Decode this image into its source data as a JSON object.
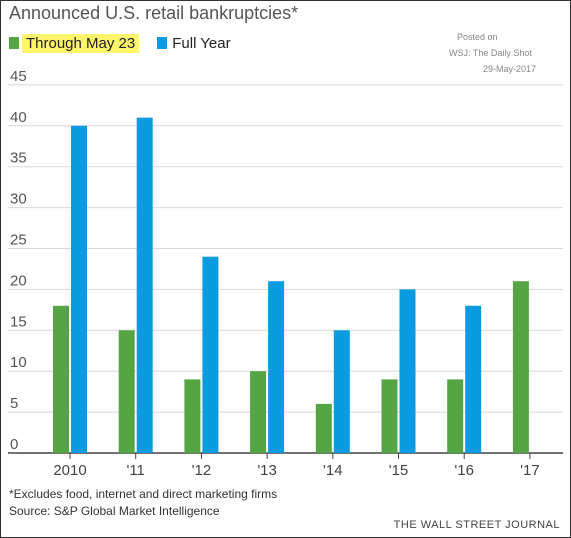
{
  "header": {
    "title": "Announced U.S. retail bankruptcies*",
    "posted_lines": [
      "Posted on",
      "WSJ: The Daily Shot",
      "29-May-2017"
    ]
  },
  "legend": [
    {
      "label": "Through May 23",
      "color": "#55a545",
      "highlight": "#fdf66b"
    },
    {
      "label": "Full Year",
      "color": "#0b9be0"
    }
  ],
  "chart_data": {
    "type": "bar",
    "title": "Announced U.S. retail bankruptcies*",
    "categories": [
      "2010",
      "'11",
      "'12",
      "'13",
      "'14",
      "'15",
      "'16",
      "'17"
    ],
    "series": [
      {
        "name": "Through May 23",
        "values": [
          18,
          15,
          9,
          10,
          6,
          9,
          9,
          21
        ],
        "color": "#55a545"
      },
      {
        "name": "Full Year",
        "values": [
          40,
          41,
          24,
          21,
          15,
          20,
          18,
          null
        ],
        "color": "#0b9be0"
      }
    ],
    "y_ticks": [
      0,
      5,
      10,
      15,
      20,
      25,
      30,
      35,
      40,
      45
    ],
    "ylim": [
      0,
      45
    ],
    "grid": true,
    "legend_position": "top-left"
  },
  "footer": {
    "note": "*Excludes food, internet and direct marketing firms",
    "source": "Source: S&P Global Market Intelligence",
    "publisher": "THE WALL STREET JOURNAL"
  }
}
